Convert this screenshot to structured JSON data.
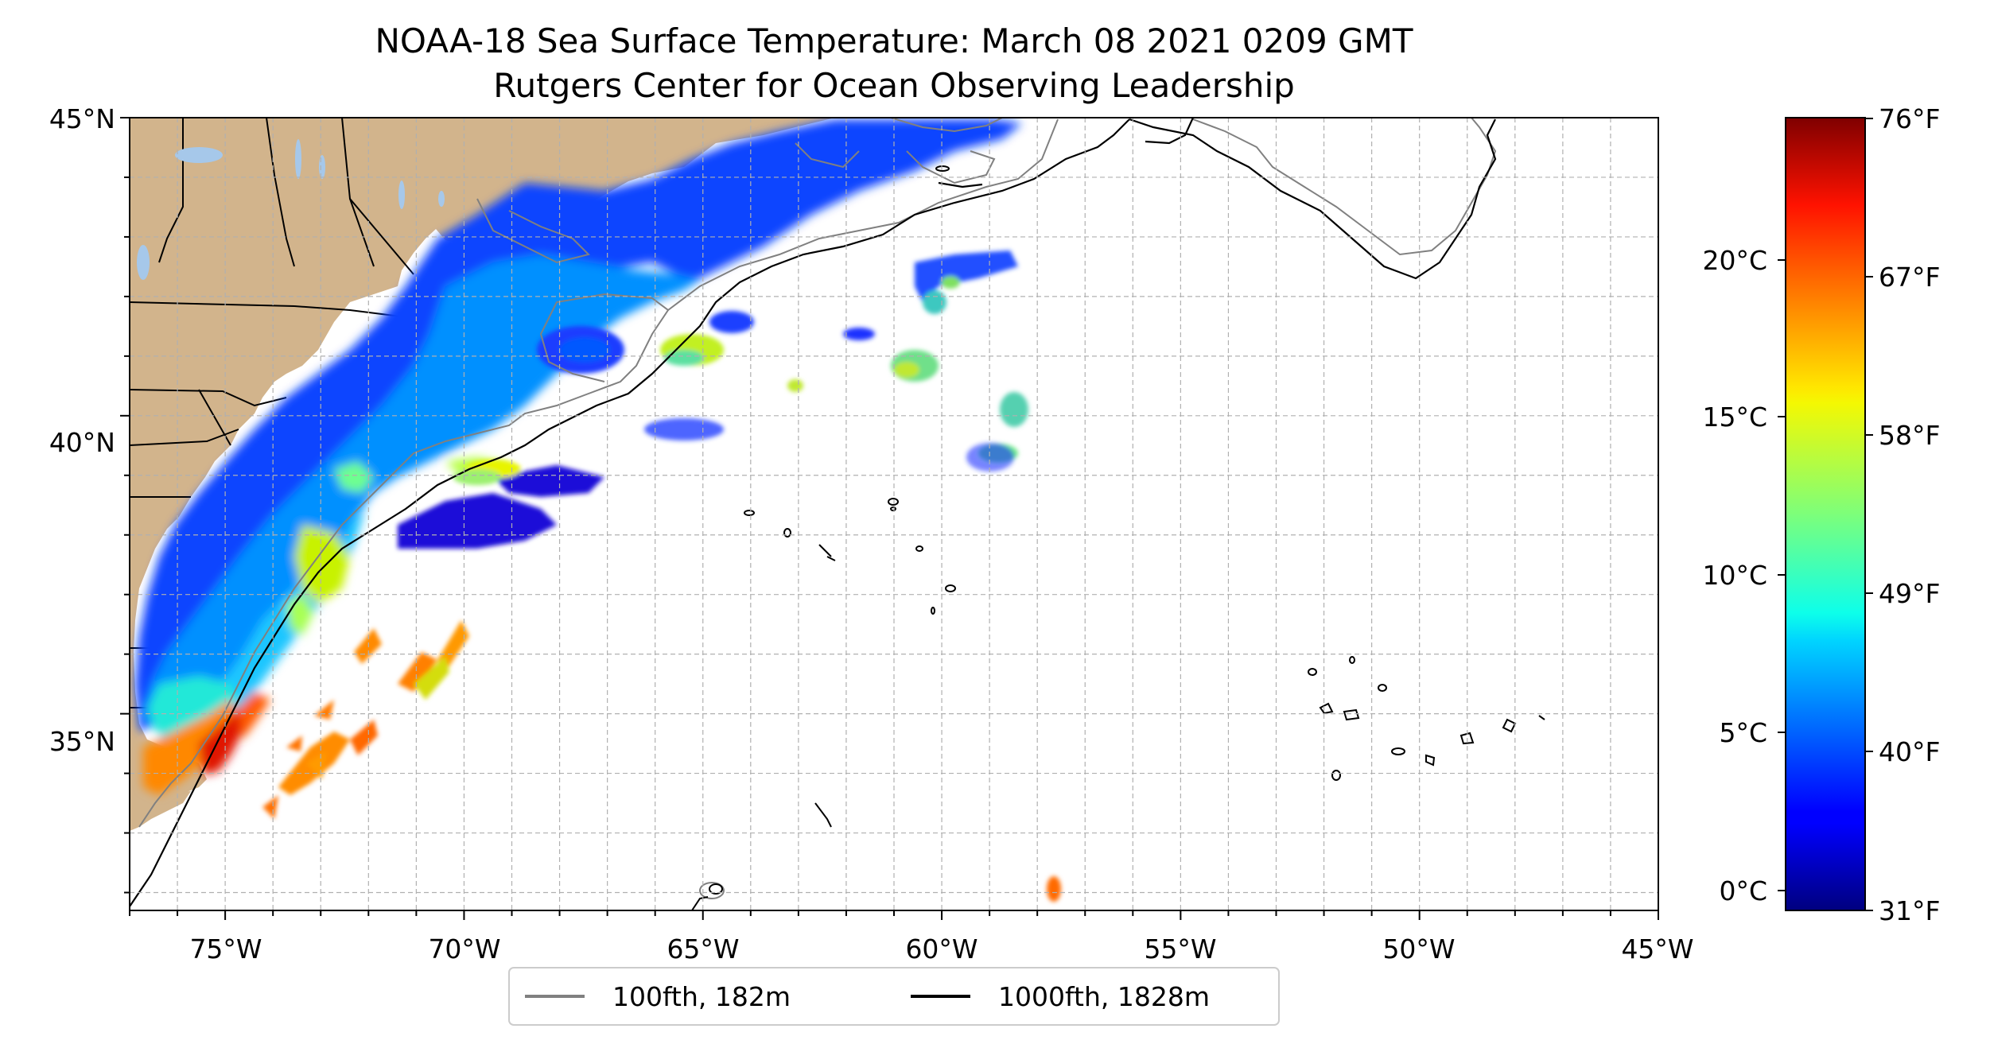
{
  "title_line1": "NOAA-18 Sea Surface Temperature: March 08 2021 0209 GMT",
  "title_line2": "Rutgers Center for Ocean Observing Leadership",
  "map": {
    "lon_range": [
      -77,
      -45
    ],
    "lat_range": [
      31.7,
      45
    ],
    "lon_tick_labels": [
      "75°W",
      "70°W",
      "65°W",
      "60°W",
      "55°W",
      "50°W",
      "45°W"
    ],
    "lon_tick_values": [
      -75,
      -70,
      -65,
      -60,
      -55,
      -50,
      -45
    ],
    "lat_tick_labels": [
      "35°N",
      "40°N",
      "45°N"
    ],
    "lat_tick_values": [
      35,
      40,
      45
    ],
    "gridlines": "dashed grey, every 1 degree",
    "land_color": "#d2b48c",
    "ocean_color": "#ffffff",
    "colormap": "jet"
  },
  "colorbar": {
    "celsius_labels": [
      "0°C",
      "5°C",
      "10°C",
      "15°C",
      "20°C"
    ],
    "celsius_values": [
      0,
      5,
      10,
      15,
      20
    ],
    "fahrenheit_labels": [
      "31°F",
      "40°F",
      "49°F",
      "58°F",
      "67°F",
      "76°F"
    ],
    "fahrenheit_values": [
      31,
      40,
      49,
      58,
      67,
      76
    ],
    "range_f": [
      31,
      76
    ]
  },
  "legend": {
    "items": [
      {
        "label": "100fth, 182m",
        "color": "#808080"
      },
      {
        "label": "1000fth, 1828m",
        "color": "#000000"
      }
    ]
  }
}
